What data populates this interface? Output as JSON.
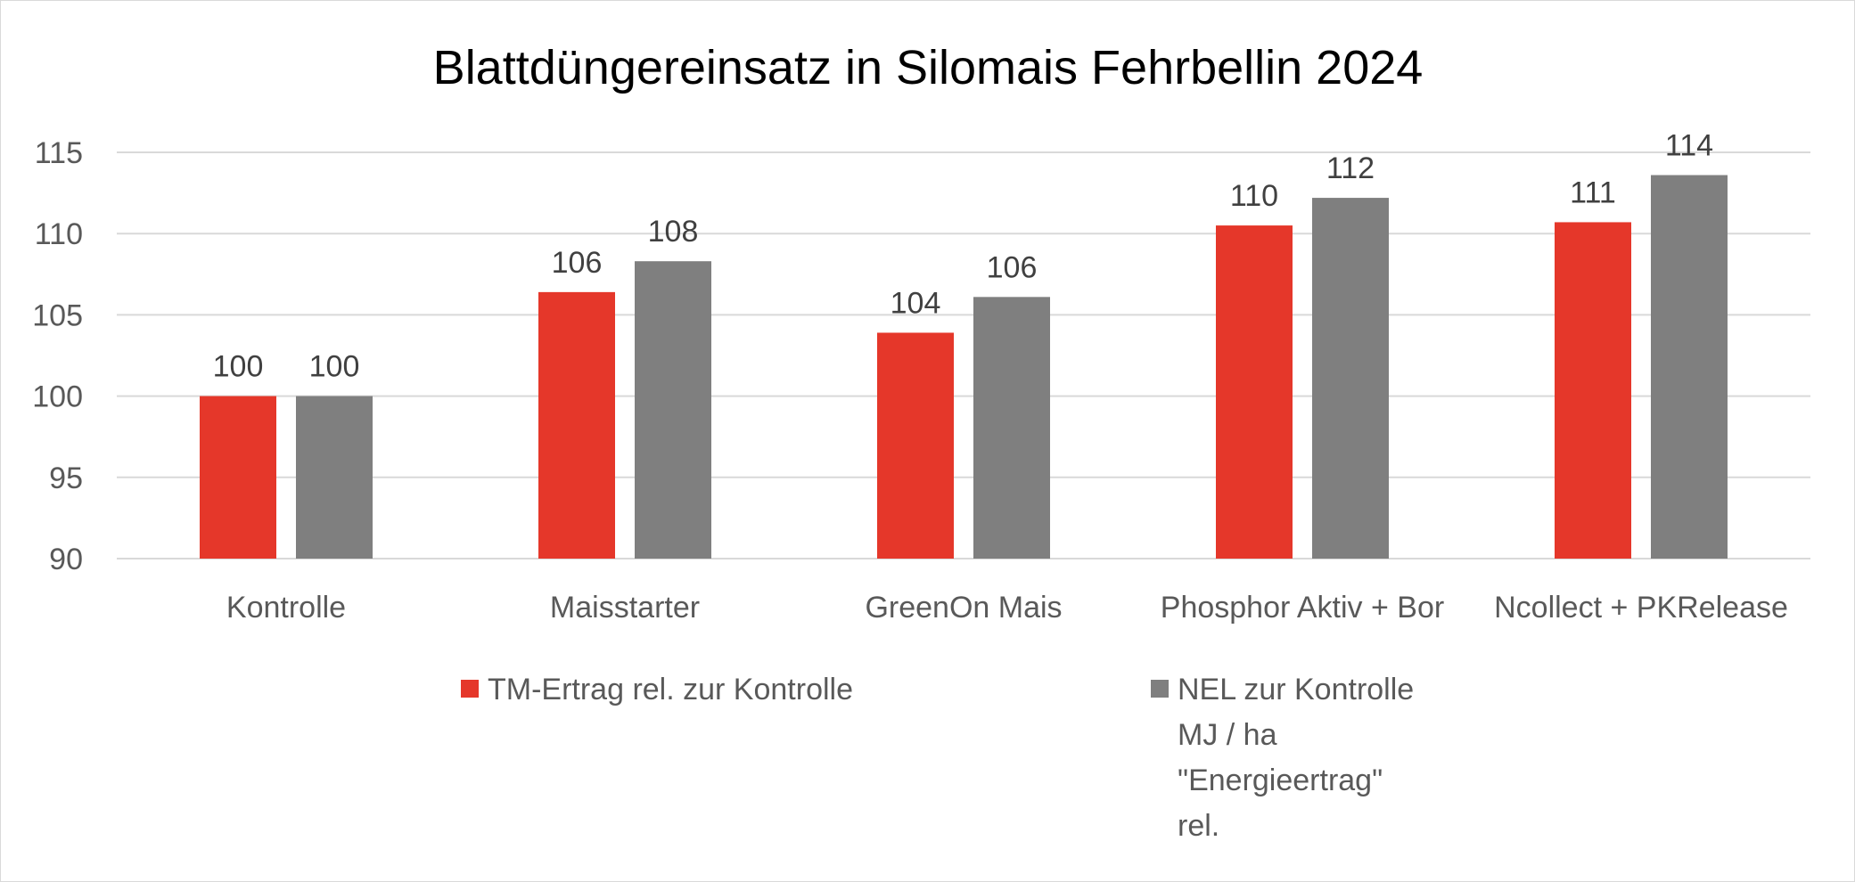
{
  "chart_data": {
    "type": "bar",
    "title": "Blattdüngereinsatz in Silomais Fehrbellin 2024",
    "categories": [
      "Kontrolle",
      "Maisstarter",
      "GreenOn Mais",
      "Phosphor Aktiv + Bor",
      "Ncollect + PKRelease"
    ],
    "series": [
      {
        "name": "TM-Ertrag rel. zur Kontrolle",
        "color": "#e5372a",
        "values": [
          100,
          106.4,
          103.9,
          110.5,
          110.7
        ],
        "labels": [
          "100",
          "106",
          "104",
          "110",
          "111"
        ]
      },
      {
        "name_lines": [
          "NEL zur Kontrolle",
          "MJ / ha",
          "\"Energieertrag\"",
          "rel."
        ],
        "color": "#7f7f7f",
        "values": [
          100,
          108.3,
          106.1,
          112.2,
          113.6
        ],
        "labels": [
          "100",
          "108",
          "106",
          "112",
          "114"
        ]
      }
    ],
    "ylim": [
      90,
      115
    ],
    "yticks": [
      "90",
      "95",
      "100",
      "105",
      "110",
      "115"
    ],
    "grid": true,
    "legend_position": "bottom"
  }
}
